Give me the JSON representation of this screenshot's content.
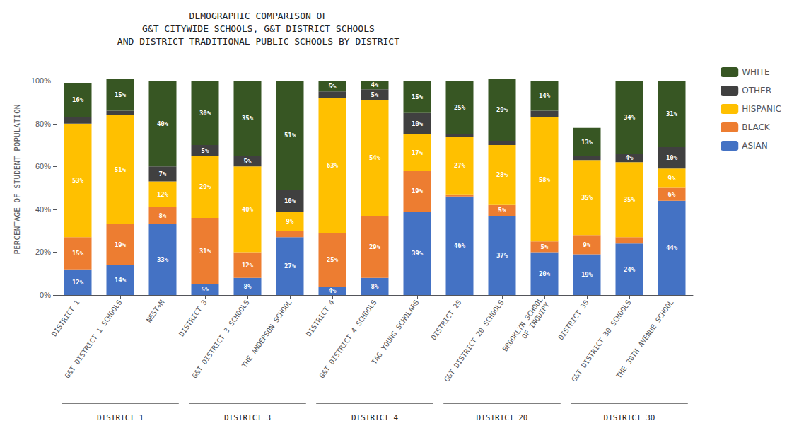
{
  "chart_data": {
    "type": "bar",
    "title": "DEMOGRAPHIC COMPARISON OF\nG&T CITYWIDE SCHOOLS, G&T DISTRICT SCHOOLS\nAND DISTRICT TRADITIONAL PUBLIC SCHOOLS BY DISTRICT",
    "ylabel": "PERCENTAGE OF STUDENT POPULATION",
    "categories": [
      "DISTRICT 1",
      "G&T DISTRICT 1 SCHOOLS",
      "NEST+M",
      "DISTRICT 3",
      "G&T DISTRICT 3 SCHOOLS",
      "THE ANDERSON SCHOOL",
      "DISTRICT 4",
      "G&T DISTRICT 4 SCHOOLS",
      "TAG YOUNG SCHOLARS",
      "DISTRICT 20",
      "G&T DISTRICT 20 SCHOOLS",
      "BROOKLYN SCHOOL\nOF INQUIRY",
      "DISTRICT 30",
      "G&T DISTRICT 30 SCHOOLS",
      "THE 30TH AVENUE SCHOOL"
    ],
    "series": [
      {
        "name": "ASIAN",
        "color": "#4472C4",
        "values": [
          12,
          14,
          33,
          5,
          8,
          27,
          4,
          8,
          39,
          46,
          37,
          20,
          19,
          24,
          44
        ],
        "value_labels": [
          "12%",
          "14%",
          "33%",
          "5%",
          "8%",
          "27%",
          "4%",
          "8%",
          "39%",
          "46%",
          "37%",
          "20%",
          "19%",
          "24%",
          "44%"
        ]
      },
      {
        "name": "BLACK",
        "color": "#ED7D31",
        "values": [
          15,
          19,
          8,
          31,
          12,
          3,
          25,
          29,
          19,
          1,
          5,
          5,
          9,
          3,
          6
        ],
        "value_labels": [
          "15%",
          "19%",
          "8%",
          "31%",
          "12%",
          null,
          "25%",
          "29%",
          "19%",
          null,
          "5%",
          "5%",
          "9%",
          null,
          "6%"
        ]
      },
      {
        "name": "HISPANIC",
        "color": "#FFC000",
        "values": [
          53,
          51,
          12,
          29,
          40,
          9,
          63,
          54,
          17,
          27,
          28,
          58,
          35,
          35,
          9
        ],
        "value_labels": [
          "53%",
          "51%",
          "12%",
          "29%",
          "40%",
          "9%",
          "63%",
          "54%",
          "17%",
          "27%",
          "28%",
          "58%",
          "35%",
          "35%",
          "9%"
        ]
      },
      {
        "name": "OTHER",
        "color": "#404040",
        "values": [
          3,
          2,
          7,
          5,
          5,
          10,
          3,
          5,
          10,
          1,
          2,
          3,
          2,
          4,
          10
        ],
        "value_labels": [
          null,
          null,
          "7%",
          "5%",
          "5%",
          "10%",
          null,
          "5%",
          "10%",
          null,
          null,
          null,
          null,
          "4%",
          "10%"
        ]
      },
      {
        "name": "WHITE",
        "color": "#375623",
        "values": [
          16,
          15,
          40,
          30,
          35,
          51,
          5,
          4,
          15,
          25,
          29,
          14,
          13,
          34,
          31
        ],
        "value_labels": [
          "16%",
          "15%",
          "40%",
          "30%",
          "35%",
          "51%",
          "5%",
          "4%",
          "15%",
          "25%",
          "29%",
          "14%",
          "13%",
          "34%",
          "31%"
        ]
      }
    ],
    "stacked": true,
    "data_labels": true,
    "ylim": [
      0,
      108
    ],
    "yticks": [
      {
        "value": 0,
        "label": "0%"
      },
      {
        "value": 20,
        "label": "20%"
      },
      {
        "value": 40,
        "label": "40%"
      },
      {
        "value": 60,
        "label": "60%"
      },
      {
        "value": 80,
        "label": "80%"
      },
      {
        "value": 100,
        "label": "100%"
      }
    ],
    "grid": false,
    "legend": "upper right",
    "annotations": [
      {
        "text": "DISTRICT 1",
        "from": "DISTRICT 1",
        "to": "NEST+M"
      },
      {
        "text": "DISTRICT 3",
        "from": "DISTRICT 3",
        "to": "THE ANDERSON SCHOOL"
      },
      {
        "text": "DISTRICT 4",
        "from": "DISTRICT 4",
        "to": "TAG YOUNG SCHOLARS"
      },
      {
        "text": "DISTRICT 20",
        "from": "DISTRICT 20",
        "to": "BROOKLYN SCHOOL\nOF INQUIRY"
      },
      {
        "text": "DISTRICT 30",
        "from": "DISTRICT 30",
        "to": "THE 30TH AVENUE SCHOOL"
      }
    ]
  }
}
